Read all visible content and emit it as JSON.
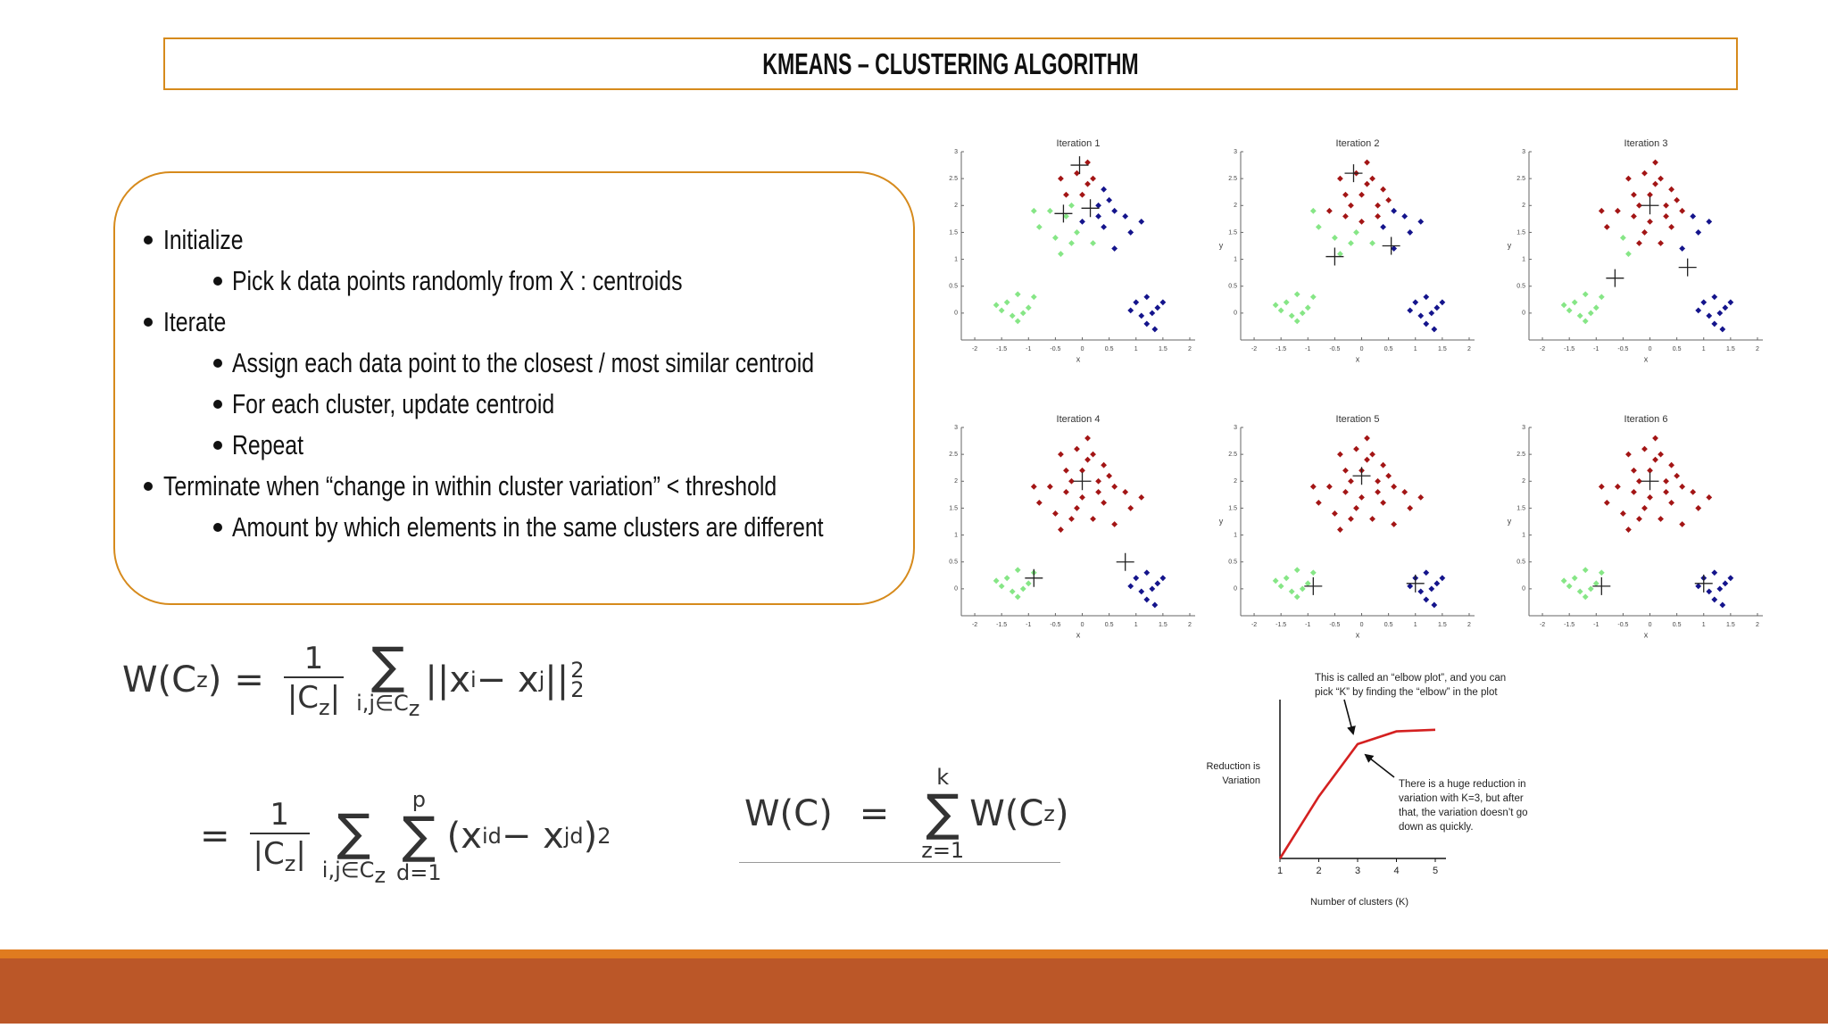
{
  "title": "KMEANS – CLUSTERING ALGORITHM",
  "bullets": [
    {
      "text": "Initialize",
      "level": 1
    },
    {
      "text": "Pick k data points randomly from X : centroids",
      "level": 2
    },
    {
      "text": "Iterate",
      "level": 1
    },
    {
      "text": "Assign each data point to the closest / most similar centroid",
      "level": 2
    },
    {
      "text": "For each cluster, update centroid",
      "level": 2
    },
    {
      "text": "Repeat",
      "level": 2
    },
    {
      "text": "Terminate when “change in within cluster variation” < threshold",
      "level": 1
    },
    {
      "text": "Amount by which elements in the same clusters are different",
      "level": 2
    }
  ],
  "formulas": [
    {
      "parts": [
        "W(C",
        "z",
        ")",
        "=",
        "1",
        "|C",
        "z",
        "|",
        "∑",
        "i,j∈C",
        "z",
        "||x",
        "i",
        " − x",
        "j",
        "||",
        "2",
        "2"
      ]
    },
    {
      "parts": [
        "=",
        "1",
        "|C",
        "z",
        "|",
        "∑",
        "i,j∈C",
        "z",
        "p",
        "∑",
        "d=1",
        "(x",
        "id",
        " − x",
        "jd",
        ")",
        "2"
      ]
    },
    {
      "parts": [
        "W(C)",
        "=",
        "k",
        "∑",
        "z=1",
        "W(C",
        "z",
        ")"
      ]
    }
  ],
  "chart_data": [
    {
      "type": "scatter",
      "xlabel": "x",
      "ylabel": "y",
      "xlim": [
        -2.25,
        2.1
      ],
      "ylim": [
        -0.5,
        3
      ],
      "xticks": [
        -2,
        -1.5,
        -1,
        -0.5,
        0,
        0.5,
        1,
        1.5,
        2
      ],
      "yticks": [
        0,
        0.5,
        1,
        1.5,
        2,
        2.5,
        3
      ],
      "cluster_colors": [
        "#a31515",
        "#86e686",
        "#14148c"
      ],
      "points": {
        "x": [
          -0.4,
          -0.1,
          0.2,
          0.4,
          -0.3,
          0,
          0.3,
          0.6,
          0.8,
          -0.6,
          -0.3,
          0,
          0.4,
          0.9,
          -0.8,
          -0.5,
          -0.2,
          0.2,
          0.6,
          -0.9,
          0.1,
          -0.4,
          -1.4,
          -1.2,
          -1.0,
          -1.3,
          -1.1,
          -1.5,
          -0.9,
          -1.2,
          -1.6,
          1.0,
          1.2,
          1.4,
          1.1,
          1.3,
          1.5,
          1.2,
          0.9,
          1.35,
          0.1,
          -0.2,
          0.5,
          -0.1,
          0.3,
          1.1
        ],
        "y": [
          2.5,
          2.6,
          2.5,
          2.3,
          2.2,
          2.2,
          2.0,
          1.9,
          1.8,
          1.9,
          1.8,
          1.7,
          1.6,
          1.5,
          1.6,
          1.4,
          1.3,
          1.3,
          1.2,
          1.9,
          2.8,
          1.1,
          0.2,
          0.35,
          0.1,
          -0.05,
          0.0,
          0.05,
          0.3,
          -0.15,
          0.15,
          0.2,
          0.3,
          0.1,
          -0.05,
          0.0,
          0.2,
          -0.2,
          0.05,
          -0.3,
          2.4,
          2.0,
          2.1,
          1.5,
          1.8,
          1.7
        ]
      },
      "iterations": [
        {
          "title": "Iteration 1",
          "ylabel_shown": false,
          "clusters": [
            0,
            0,
            0,
            2,
            0,
            0,
            2,
            2,
            2,
            1,
            1,
            2,
            2,
            2,
            1,
            1,
            1,
            1,
            2,
            1,
            0,
            1,
            1,
            1,
            1,
            1,
            1,
            1,
            1,
            1,
            1,
            2,
            2,
            2,
            2,
            2,
            2,
            2,
            2,
            2,
            0,
            1,
            2,
            1,
            2,
            2
          ],
          "centroids": {
            "x": [
              -0.05,
              -0.35,
              0.15
            ],
            "y": [
              2.75,
              1.85,
              1.95
            ]
          }
        },
        {
          "title": "Iteration 2",
          "ylabel_shown": true,
          "clusters": [
            0,
            0,
            0,
            0,
            0,
            0,
            0,
            2,
            2,
            0,
            0,
            0,
            2,
            2,
            1,
            1,
            1,
            1,
            2,
            1,
            0,
            1,
            1,
            1,
            1,
            1,
            1,
            1,
            1,
            1,
            1,
            2,
            2,
            2,
            2,
            2,
            2,
            2,
            2,
            2,
            0,
            0,
            0,
            1,
            0,
            2
          ],
          "centroids": {
            "x": [
              -0.15,
              -0.5,
              0.55
            ],
            "y": [
              2.6,
              1.05,
              1.25
            ]
          }
        },
        {
          "title": "Iteration 3",
          "ylabel_shown": true,
          "clusters": [
            0,
            0,
            0,
            0,
            0,
            0,
            0,
            0,
            2,
            0,
            0,
            0,
            0,
            2,
            0,
            1,
            0,
            0,
            2,
            0,
            0,
            1,
            1,
            1,
            1,
            1,
            1,
            1,
            1,
            1,
            1,
            2,
            2,
            2,
            2,
            2,
            2,
            2,
            2,
            2,
            0,
            0,
            0,
            0,
            0,
            2
          ],
          "centroids": {
            "x": [
              0,
              -0.65,
              0.7
            ],
            "y": [
              2.0,
              0.65,
              0.85
            ]
          }
        },
        {
          "title": "Iteration 4",
          "ylabel_shown": false,
          "clusters": [
            0,
            0,
            0,
            0,
            0,
            0,
            0,
            0,
            0,
            0,
            0,
            0,
            0,
            0,
            0,
            0,
            0,
            0,
            0,
            0,
            0,
            0,
            1,
            1,
            1,
            1,
            1,
            1,
            1,
            1,
            1,
            2,
            2,
            2,
            2,
            2,
            2,
            2,
            2,
            2,
            0,
            0,
            0,
            0,
            0,
            0
          ],
          "centroids": {
            "x": [
              0,
              -0.9,
              0.8
            ],
            "y": [
              2.0,
              0.2,
              0.5
            ]
          }
        },
        {
          "title": "Iteration 5",
          "ylabel_shown": true,
          "clusters": [
            0,
            0,
            0,
            0,
            0,
            0,
            0,
            0,
            0,
            0,
            0,
            0,
            0,
            0,
            0,
            0,
            0,
            0,
            0,
            0,
            0,
            0,
            1,
            1,
            1,
            1,
            1,
            1,
            1,
            1,
            1,
            2,
            2,
            2,
            2,
            2,
            2,
            2,
            2,
            2,
            0,
            0,
            0,
            0,
            0,
            0
          ],
          "centroids": {
            "x": [
              0,
              -0.9,
              1.0
            ],
            "y": [
              2.1,
              0.05,
              0.1
            ]
          }
        },
        {
          "title": "Iteration 6",
          "ylabel_shown": true,
          "clusters": [
            0,
            0,
            0,
            0,
            0,
            0,
            0,
            0,
            0,
            0,
            0,
            0,
            0,
            0,
            0,
            0,
            0,
            0,
            0,
            0,
            0,
            0,
            1,
            1,
            1,
            1,
            1,
            1,
            1,
            1,
            1,
            2,
            2,
            2,
            2,
            2,
            2,
            2,
            2,
            2,
            0,
            0,
            0,
            0,
            0,
            0
          ],
          "centroids": {
            "x": [
              0,
              -0.9,
              1.0
            ],
            "y": [
              2.0,
              0.05,
              0.1
            ]
          }
        }
      ]
    },
    {
      "type": "line",
      "x": [
        1,
        2,
        3,
        4,
        5
      ],
      "values": [
        0,
        0.39,
        0.72,
        0.8,
        0.81
      ],
      "color": "#d42020",
      "xlim": [
        1,
        5
      ],
      "ylim": [
        0,
        1
      ],
      "xticks": [
        1,
        2,
        3,
        4,
        5
      ],
      "xlabel": "Number of clusters (K)",
      "ylabel": [
        "Reduction is",
        "Variation"
      ],
      "annotations": [
        {
          "lines": [
            "This is called an “elbow plot”, and you can",
            "pick “K” by finding the “elbow” in the plot"
          ]
        },
        {
          "lines": [
            "There is a huge reduction in",
            "variation with K=3, but after",
            "that, the variation doesn’t go",
            "down as quickly."
          ]
        }
      ]
    }
  ]
}
